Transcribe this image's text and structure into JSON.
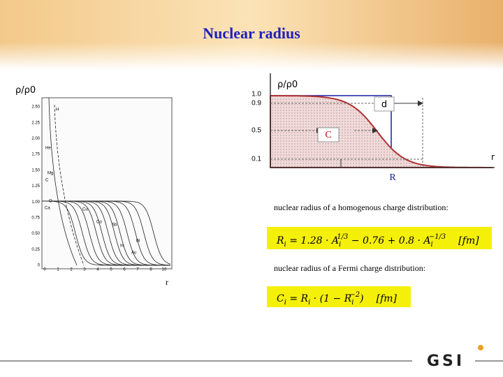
{
  "header": {
    "title": "Nuclear radius"
  },
  "left_figure": {
    "y_label": "ρ/ρ0",
    "x_label": "r",
    "yticks": [
      "2.50",
      "2.25",
      "2.00",
      "1.75",
      "1.50",
      "1.25",
      "1.00",
      "0.75",
      "0.50",
      "0.25",
      "0"
    ],
    "xticks": [
      "0",
      "1",
      "2",
      "3",
      "4",
      "5",
      "6",
      "7",
      "8",
      "10"
    ],
    "curve_labels": [
      "H",
      "He",
      "Mg",
      "C",
      "O",
      "Ca",
      "Cu",
      "Co",
      "Sb",
      "In",
      "Bi",
      "Au"
    ]
  },
  "right_figure": {
    "y_label": "ρ/ρ0",
    "yticks": [
      "1.0",
      "0.9",
      "0.5",
      "0.1"
    ],
    "d_label": "d",
    "c_label": "C",
    "r_axis_label": "r",
    "radius_label": "R"
  },
  "formulas": {
    "caption1": "nuclear radius of a homogenous charge distribution:",
    "formula1": [
      "R",
      "i",
      " = 1.28 · A",
      "i",
      "1/3",
      " − 0.76 + 0.8 · A",
      "i",
      "−1/3",
      "[fm]"
    ],
    "caption2": "nuclear radius of a Fermi charge distribution:",
    "formula2": [
      "C",
      "i",
      " = R",
      "i",
      " · (1 − R",
      "i",
      "−2",
      ")",
      "[fm]"
    ]
  },
  "footer": {
    "logo": "GSI"
  }
}
